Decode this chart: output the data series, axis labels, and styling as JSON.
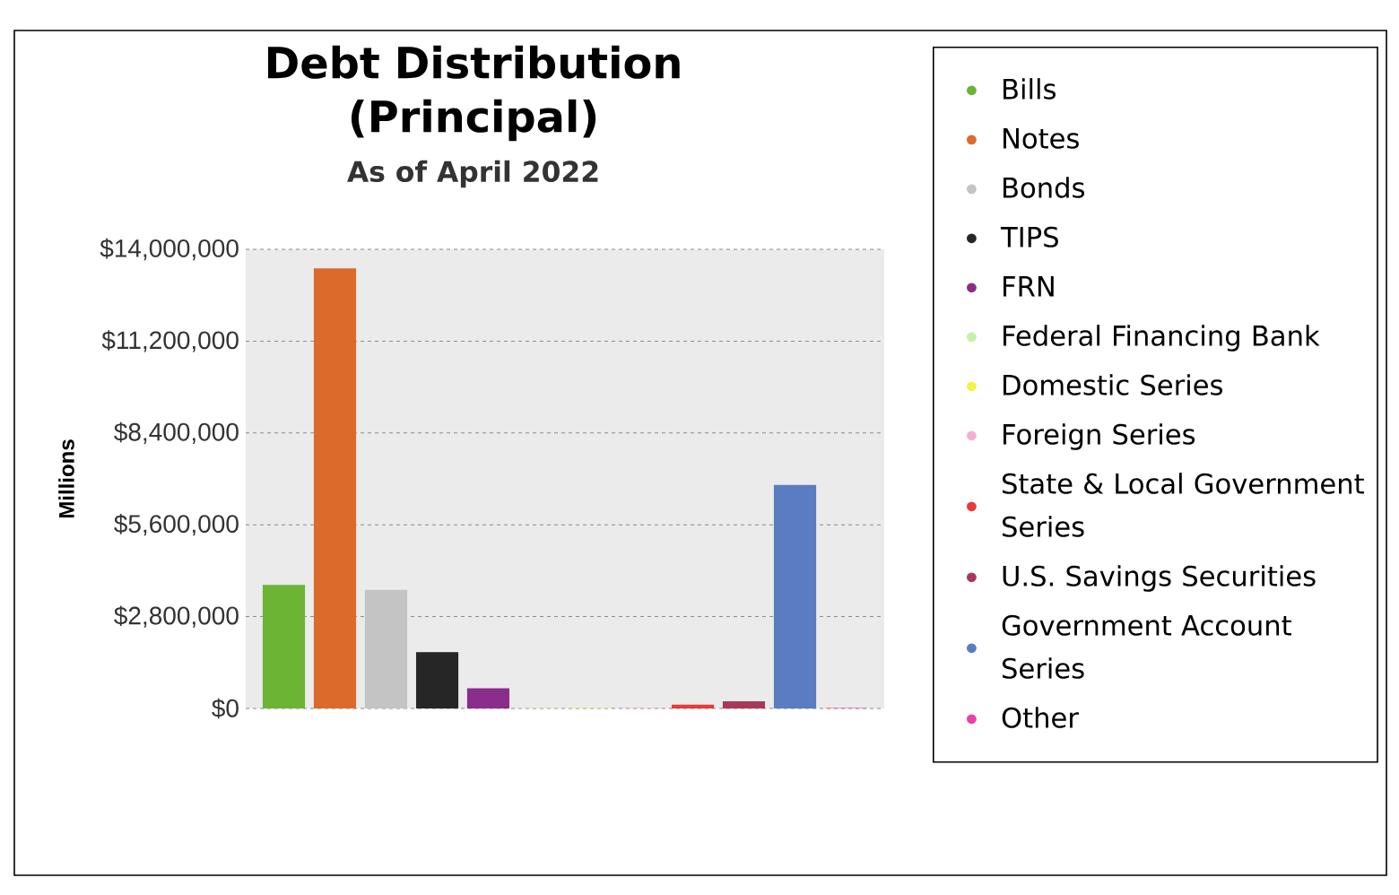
{
  "chart_data": {
    "type": "bar",
    "title": "Debt Distribution (Principal)",
    "subtitle": "As of April 2022",
    "ylabel": "Millions",
    "categories": [
      null
    ],
    "series": [
      {
        "name": "Bills",
        "color": "#6cb434",
        "values": [
          3750000
        ]
      },
      {
        "name": "Notes",
        "color": "#dc6a2a",
        "values": [
          13400000
        ]
      },
      {
        "name": "Bonds",
        "color": "#c4c4c4",
        "values": [
          3600000
        ]
      },
      {
        "name": "TIPS",
        "color": "#262626",
        "values": [
          1700000
        ]
      },
      {
        "name": "FRN",
        "color": "#8b2d8b",
        "values": [
          600000
        ]
      },
      {
        "name": "Federal Financing Bank",
        "color": "#c8f0a8",
        "values": [
          0
        ]
      },
      {
        "name": "Domestic Series",
        "color": "#f2f24a",
        "values": [
          0
        ]
      },
      {
        "name": "Foreign Series",
        "color": "#f4b0d4",
        "values": [
          0
        ]
      },
      {
        "name": "State & Local Government Series",
        "color": "#e83a3a",
        "values": [
          100000
        ]
      },
      {
        "name": "U.S. Savings Securities",
        "color": "#a8385a",
        "values": [
          200000
        ]
      },
      {
        "name": "Government Account Series",
        "color": "#5a7cc0",
        "values": [
          6800000
        ]
      },
      {
        "name": "Other",
        "color": "#ee3fa8",
        "values": [
          0
        ]
      }
    ],
    "ylim": [
      0,
      14000000
    ],
    "yticks": [
      {
        "value": 0,
        "label": "$0"
      },
      {
        "value": 2800000,
        "label": "$2,800,000"
      },
      {
        "value": 5600000,
        "label": "$5,600,000"
      },
      {
        "value": 8400000,
        "label": "$8,400,000"
      },
      {
        "value": 11200000,
        "label": "$11,200,000"
      },
      {
        "value": 14000000,
        "label": "$14,000,000"
      }
    ],
    "grid": "y",
    "legend": "right"
  }
}
